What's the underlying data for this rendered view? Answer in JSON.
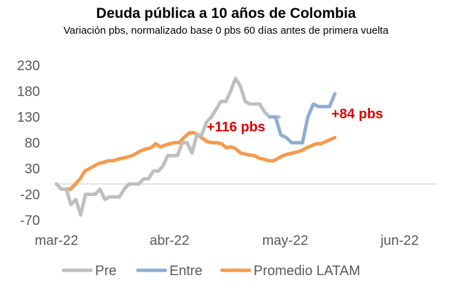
{
  "chart_data": {
    "type": "line",
    "title": "Deuda pública a 10 años de Colombia",
    "subtitle": "Variación pbs, normalizado base 0 pbs 60 días antes de primera vuelta",
    "ylim": [
      -70,
      230
    ],
    "yticks": [
      "230",
      "180",
      "130",
      "80",
      "30",
      "-20",
      "-70"
    ],
    "xticks": [
      "mar-22",
      "abr-22",
      "may-22",
      "jun-22"
    ],
    "grid": false,
    "legend": "bottom",
    "annotations": [
      "+116 pbs",
      "+84 pbs"
    ],
    "colors": {
      "Pre": "#bfbfbf",
      "Entre": "#8eadd6",
      "Promedio LATAM": "#f59a4c"
    },
    "series": [
      {
        "name": "Pre",
        "values": [
          0,
          -10,
          -10,
          -40,
          -30,
          -60,
          -20,
          -20,
          -20,
          -10,
          -30,
          -25,
          -25,
          -25,
          -10,
          0,
          0,
          0,
          10,
          10,
          25,
          25,
          35,
          55,
          55,
          55,
          80,
          80,
          60,
          95,
          95,
          120,
          130,
          145,
          160,
          160,
          180,
          205,
          190,
          160,
          155,
          155,
          155,
          140,
          130,
          130,
          130
        ]
      },
      {
        "name": "Entre",
        "values": [
          130,
          130,
          95,
          90,
          80,
          80,
          80,
          130,
          155,
          150,
          150,
          150,
          175
        ]
      },
      {
        "name": "Promedio LATAM",
        "values": [
          0,
          -10,
          -10,
          -10,
          0,
          10,
          25,
          30,
          35,
          40,
          42,
          45,
          45,
          48,
          50,
          52,
          55,
          60,
          65,
          68,
          70,
          78,
          72,
          75,
          78,
          80,
          80,
          90,
          98,
          100,
          95,
          88,
          82,
          80,
          80,
          78,
          70,
          72,
          68,
          60,
          58,
          56,
          55,
          50,
          48,
          45,
          45,
          50,
          55,
          58,
          60,
          62,
          65,
          70,
          74,
          78,
          78,
          82,
          86,
          90
        ]
      }
    ]
  }
}
